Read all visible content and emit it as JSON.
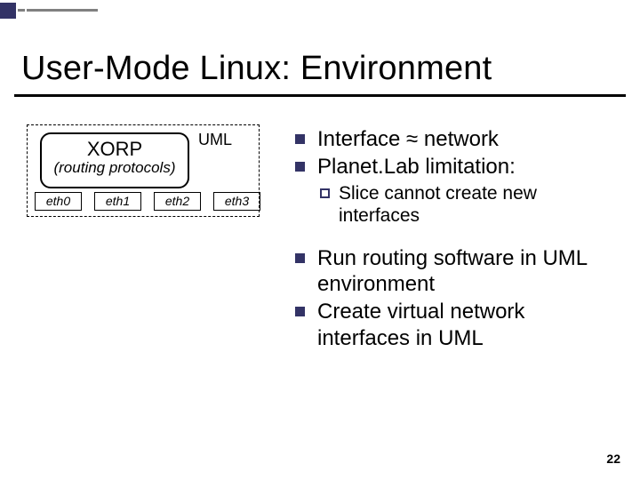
{
  "accent": {
    "square_color": "#333366",
    "line_color": "#808080",
    "short_line_width": 8,
    "long_line_width": 80
  },
  "title": "User-Mode Linux: Environment",
  "diagram": {
    "xorp_title": "XORP",
    "xorp_sub": "(routing protocols)",
    "uml_label": "UML",
    "eth": [
      "eth0",
      "eth1",
      "eth2",
      "eth3"
    ]
  },
  "bullets": {
    "items": [
      {
        "level": 1,
        "text": "Interface ≈ network"
      },
      {
        "level": 1,
        "text": "Planet.Lab limitation:"
      },
      {
        "level": 2,
        "text": "Slice cannot create new interfaces"
      },
      {
        "level": 0,
        "text": ""
      },
      {
        "level": 1,
        "text": "Run routing software in UML environment"
      },
      {
        "level": 1,
        "text": "Create virtual network interfaces in UML"
      }
    ]
  },
  "page_number": "22",
  "styling": {
    "title_fontsize": 38,
    "body_fontsize": 24,
    "sub_fontsize": 21,
    "bullet_color": "#333366",
    "background_color": "#ffffff",
    "text_color": "#000000"
  }
}
